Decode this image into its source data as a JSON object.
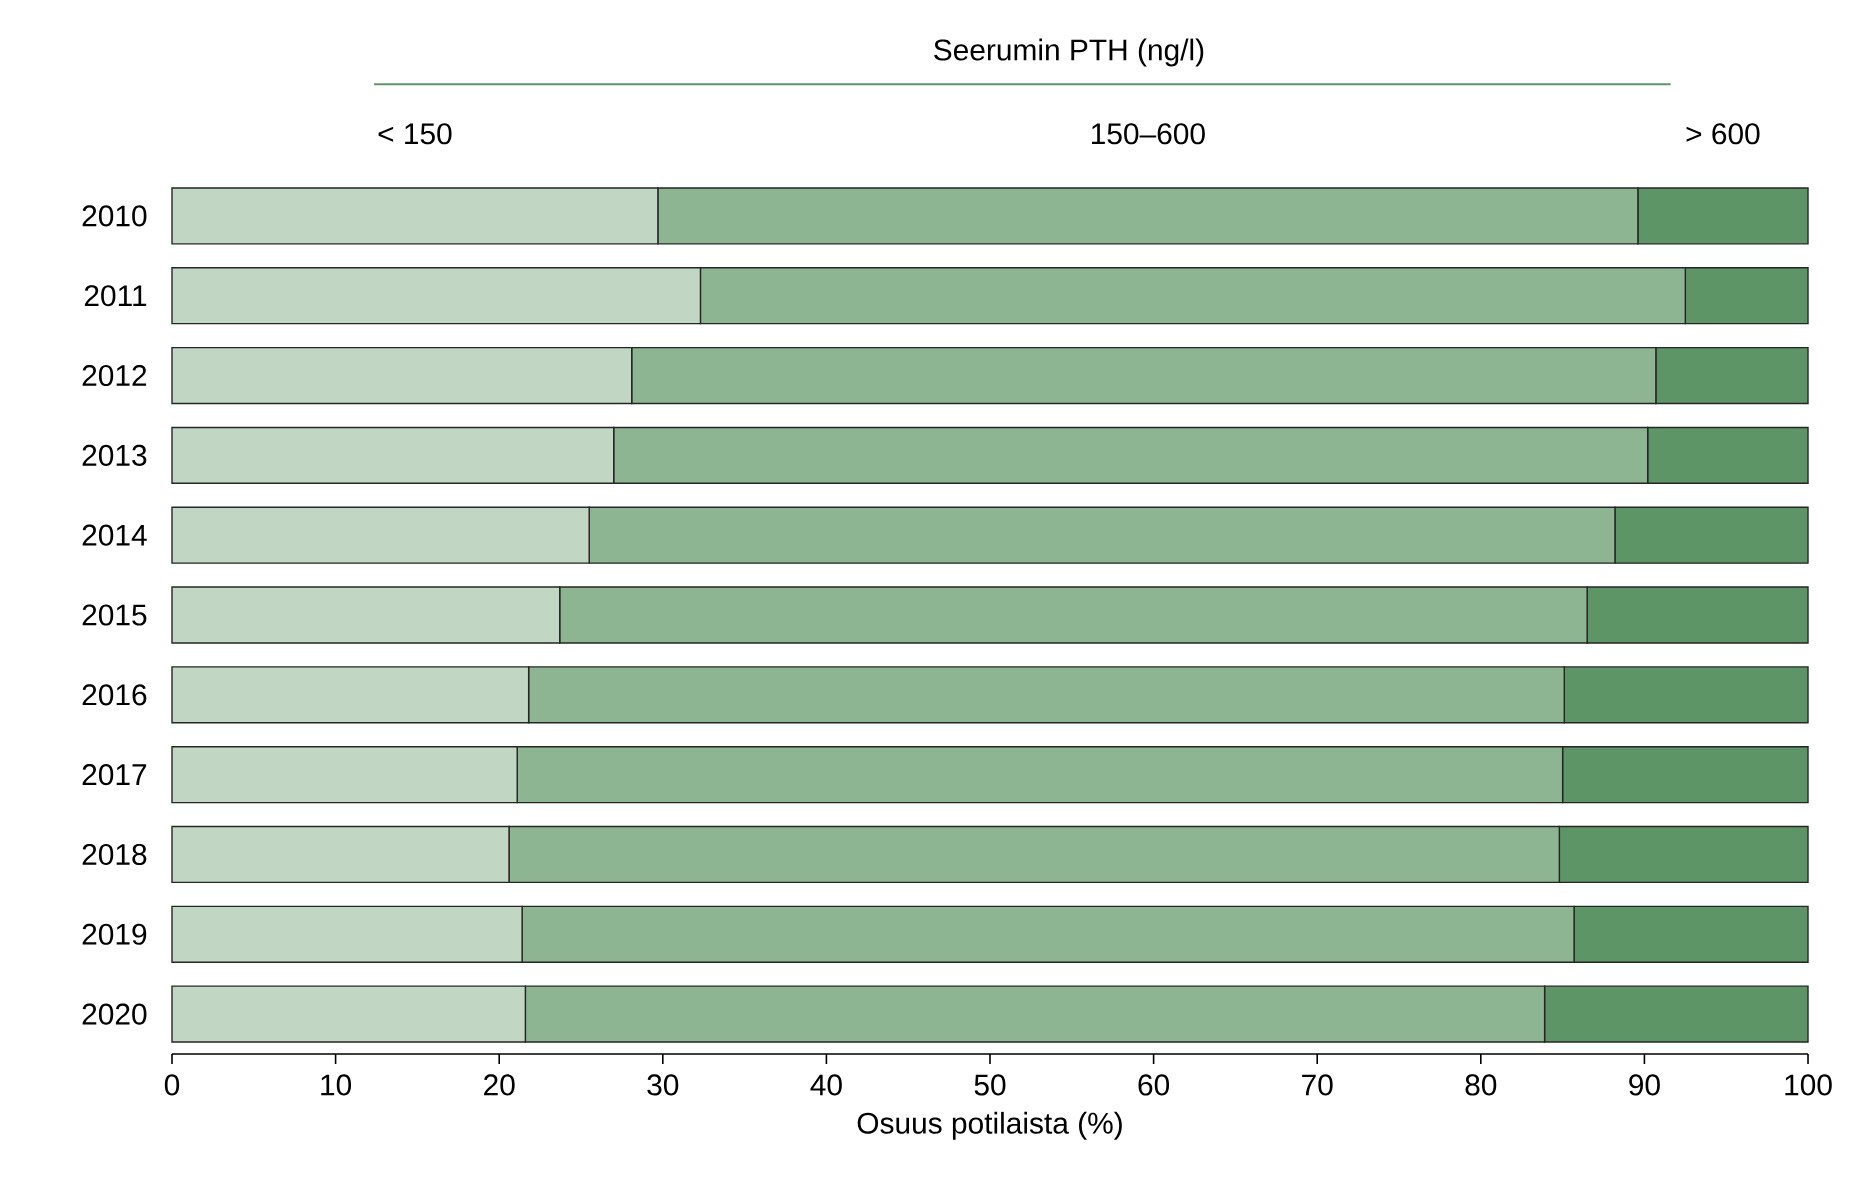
{
  "chart_data": {
    "type": "bar",
    "orientation": "horizontal",
    "stacked": true,
    "legend": "top",
    "legend_title": "Seerumin PTH (ng/l)",
    "xlabel": "Osuus potilaista (%)",
    "categories": [
      "2010",
      "2011",
      "2012",
      "2013",
      "2014",
      "2015",
      "2016",
      "2017",
      "2018",
      "2019",
      "2020"
    ],
    "xlim": [
      0,
      100
    ],
    "xticks": [
      0,
      10,
      20,
      30,
      40,
      50,
      60,
      70,
      80,
      90,
      100
    ],
    "series": [
      {
        "name": "< 150",
        "color": "#c2d7c3",
        "values": [
          29.7,
          32.3,
          28.1,
          27.0,
          25.5,
          23.7,
          21.8,
          21.1,
          20.6,
          21.4,
          21.6
        ]
      },
      {
        "name": "150–600",
        "color": "#8db592",
        "values": [
          59.9,
          60.2,
          62.6,
          63.2,
          62.7,
          62.8,
          63.3,
          63.9,
          64.2,
          64.3,
          62.3
        ]
      },
      {
        "name": "> 600",
        "color": "#5e9567",
        "values": [
          10.4,
          7.5,
          9.3,
          9.8,
          11.8,
          13.5,
          14.9,
          15.0,
          15.2,
          14.3,
          16.1
        ]
      }
    ]
  }
}
